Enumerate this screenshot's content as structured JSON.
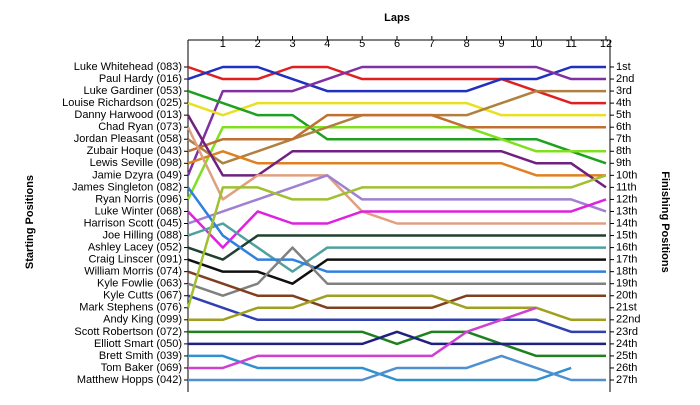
{
  "chart_data": {
    "type": "line",
    "title": "Laps",
    "y_label": "Starting Positions",
    "y2_label": "Finishing Positions",
    "x": [
      0,
      1,
      2,
      3,
      4,
      5,
      6,
      7,
      8,
      9,
      10,
      11,
      12
    ],
    "xlim": [
      0,
      12
    ],
    "xticks": [
      1,
      2,
      3,
      4,
      5,
      6,
      7,
      8,
      9,
      10,
      11,
      12
    ],
    "ylim": [
      27,
      1
    ],
    "yticks": [
      1,
      2,
      3,
      4,
      5,
      6,
      7,
      8,
      9,
      10,
      11,
      12,
      13,
      14,
      15,
      16,
      17,
      18,
      19,
      20,
      21,
      22,
      23,
      24,
      25,
      26,
      27
    ],
    "y2lim": [
      27,
      1
    ],
    "y2ticks": [
      {
        "value": 1,
        "label": "1st"
      },
      {
        "value": 2,
        "label": "2nd"
      },
      {
        "value": 3,
        "label": "3rd"
      },
      {
        "value": 4,
        "label": "4th"
      },
      {
        "value": 5,
        "label": "5th"
      },
      {
        "value": 6,
        "label": "6th"
      },
      {
        "value": 7,
        "label": "7th"
      },
      {
        "value": 8,
        "label": "8th"
      },
      {
        "value": 9,
        "label": "9th"
      },
      {
        "value": 10,
        "label": "10th"
      },
      {
        "value": 11,
        "label": "11th"
      },
      {
        "value": 12,
        "label": "12th"
      },
      {
        "value": 13,
        "label": "13th"
      },
      {
        "value": 14,
        "label": "14th"
      },
      {
        "value": 15,
        "label": "15th"
      },
      {
        "value": 16,
        "label": "16th"
      },
      {
        "value": 17,
        "label": "17th"
      },
      {
        "value": 18,
        "label": "18th"
      },
      {
        "value": 19,
        "label": "19th"
      },
      {
        "value": 20,
        "label": "20th"
      },
      {
        "value": 21,
        "label": "21st"
      },
      {
        "value": 22,
        "label": "22nd"
      },
      {
        "value": 23,
        "label": "23rd"
      },
      {
        "value": 24,
        "label": "24th"
      },
      {
        "value": 25,
        "label": "25th"
      },
      {
        "value": 26,
        "label": "26th"
      },
      {
        "value": 27,
        "label": "27th"
      }
    ],
    "series": [
      {
        "name": "Luke Whitehead (083)",
        "color": "#e02020",
        "values": [
          1,
          2,
          2,
          1,
          1,
          2,
          2,
          2,
          2,
          2,
          3,
          4,
          4
        ]
      },
      {
        "name": "Paul Hardy (016)",
        "color": "#2030c0",
        "values": [
          2,
          1,
          1,
          2,
          3,
          3,
          3,
          3,
          3,
          2,
          2,
          1,
          1
        ]
      },
      {
        "name": "Jamie Dzyra (049)",
        "color": "#8030a0",
        "values": [
          10,
          3,
          3,
          3,
          2,
          1,
          1,
          1,
          1,
          1,
          1,
          2,
          2
        ]
      },
      {
        "name": "Louise Richardson (025)",
        "color": "#e8e020",
        "values": [
          4,
          5,
          4,
          4,
          4,
          4,
          4,
          4,
          4,
          5,
          5,
          5,
          5
        ]
      },
      {
        "name": "Luke Gardiner (053)",
        "color": "#20a020",
        "values": [
          3,
          4,
          5,
          5,
          7,
          7,
          7,
          7,
          7,
          7,
          7,
          8,
          9
        ]
      },
      {
        "name": "Ryan Norris (096)",
        "color": "#80e020",
        "values": [
          12,
          6,
          6,
          6,
          6,
          6,
          6,
          6,
          6,
          7,
          8,
          8,
          8
        ]
      },
      {
        "name": "Jordan Pleasant (058)",
        "color": "#b08040",
        "values": [
          7,
          9,
          8,
          7,
          6,
          5,
          5,
          5,
          5,
          4,
          3,
          3,
          3
        ]
      },
      {
        "name": "Zubair Hoque (043)",
        "color": "#c07030",
        "values": [
          8,
          7,
          7,
          7,
          5,
          5,
          5,
          5,
          6,
          6,
          6,
          6,
          6
        ]
      },
      {
        "name": "Lewis Seville (098)",
        "color": "#e08020",
        "values": [
          9,
          8,
          9,
          9,
          9,
          9,
          9,
          9,
          9,
          9,
          10,
          10,
          10
        ]
      },
      {
        "name": "Danny Harwood (013)",
        "color": "#702080",
        "values": [
          5,
          10,
          10,
          8,
          8,
          8,
          8,
          8,
          8,
          8,
          9,
          9,
          11
        ]
      },
      {
        "name": "Chad Ryan (073)",
        "color": "#e0a080",
        "values": [
          6,
          12,
          10,
          10,
          10,
          13,
          14,
          14,
          14,
          14,
          14,
          14,
          14
        ]
      },
      {
        "name": "Harrison Scott (045)",
        "color": "#a080d0",
        "values": [
          14,
          13,
          12,
          11,
          10,
          12,
          12,
          12,
          12,
          12,
          12,
          12,
          13
        ]
      },
      {
        "name": "Luke Winter (068)",
        "color": "#e020e0",
        "values": [
          13,
          16,
          13,
          14,
          14,
          13,
          13,
          13,
          13,
          13,
          13,
          13,
          12
        ]
      },
      {
        "name": "Joe Hilling (088)",
        "color": "#50a0a0",
        "values": [
          15,
          14,
          16,
          18,
          16,
          16,
          16,
          16,
          16,
          16,
          16,
          16,
          16
        ]
      },
      {
        "name": "Ashley Lacey (052)",
        "color": "#204030",
        "values": [
          16,
          17,
          15,
          15,
          15,
          15,
          15,
          15,
          15,
          15,
          15,
          15,
          15
        ]
      },
      {
        "name": "James Singleton (082)",
        "color": "#3080e0",
        "values": [
          11,
          15,
          17,
          17,
          18,
          18,
          18,
          18,
          18,
          18,
          18,
          18,
          18
        ]
      },
      {
        "name": "Craig Linscer (091)",
        "color": "#101010",
        "values": [
          17,
          18,
          18,
          19,
          17,
          17,
          17,
          17,
          17,
          17,
          17,
          17,
          17
        ]
      },
      {
        "name": "Kyle Fowlie (063)",
        "color": "#808080",
        "values": [
          19,
          20,
          19,
          16,
          19,
          19,
          19,
          19,
          19,
          19,
          19,
          19,
          19
        ]
      },
      {
        "name": "Kyle Cutts (067)",
        "color": "#3040b0",
        "values": [
          20,
          21,
          22,
          22,
          22,
          22,
          22,
          22,
          22,
          22,
          22,
          23,
          23
        ]
      },
      {
        "name": "William Morris (074)",
        "color": "#804020",
        "values": [
          18,
          19,
          20,
          20,
          21,
          21,
          21,
          21,
          20,
          20,
          20,
          20,
          20
        ]
      },
      {
        "name": "Mark Stephens (076)",
        "color": "#a0c030",
        "values": [
          21,
          11,
          11,
          12,
          12,
          11,
          11,
          11,
          11,
          11,
          11,
          11,
          10
        ]
      },
      {
        "name": "Andy King (099)",
        "color": "#a0a020",
        "values": [
          22,
          22,
          21,
          21,
          20,
          20,
          20,
          20,
          21,
          21,
          21,
          22,
          22
        ]
      },
      {
        "name": "Scott Robertson (072)",
        "color": "#208020",
        "values": [
          23,
          23,
          23,
          23,
          23,
          23,
          24,
          23,
          23,
          24,
          25,
          25,
          25
        ]
      },
      {
        "name": "Elliott Smart (050)",
        "color": "#202080",
        "values": [
          24,
          24,
          24,
          24,
          24,
          24,
          23,
          24,
          24,
          24,
          24,
          24,
          24
        ]
      },
      {
        "name": "Brett Smith (039)",
        "color": "#3090d0",
        "values": [
          25,
          25,
          26,
          26,
          26,
          26,
          27,
          27,
          27,
          27,
          27,
          26,
          null
        ]
      },
      {
        "name": "Tom Baker (069)",
        "color": "#d040d0",
        "values": [
          26,
          26,
          25,
          25,
          25,
          25,
          25,
          25,
          23,
          22,
          21,
          null,
          null
        ]
      },
      {
        "name": "Matthew Hopps (042)",
        "color": "#5090d0",
        "values": [
          27,
          27,
          27,
          27,
          27,
          27,
          26,
          26,
          26,
          25,
          26,
          27,
          27
        ]
      }
    ]
  }
}
